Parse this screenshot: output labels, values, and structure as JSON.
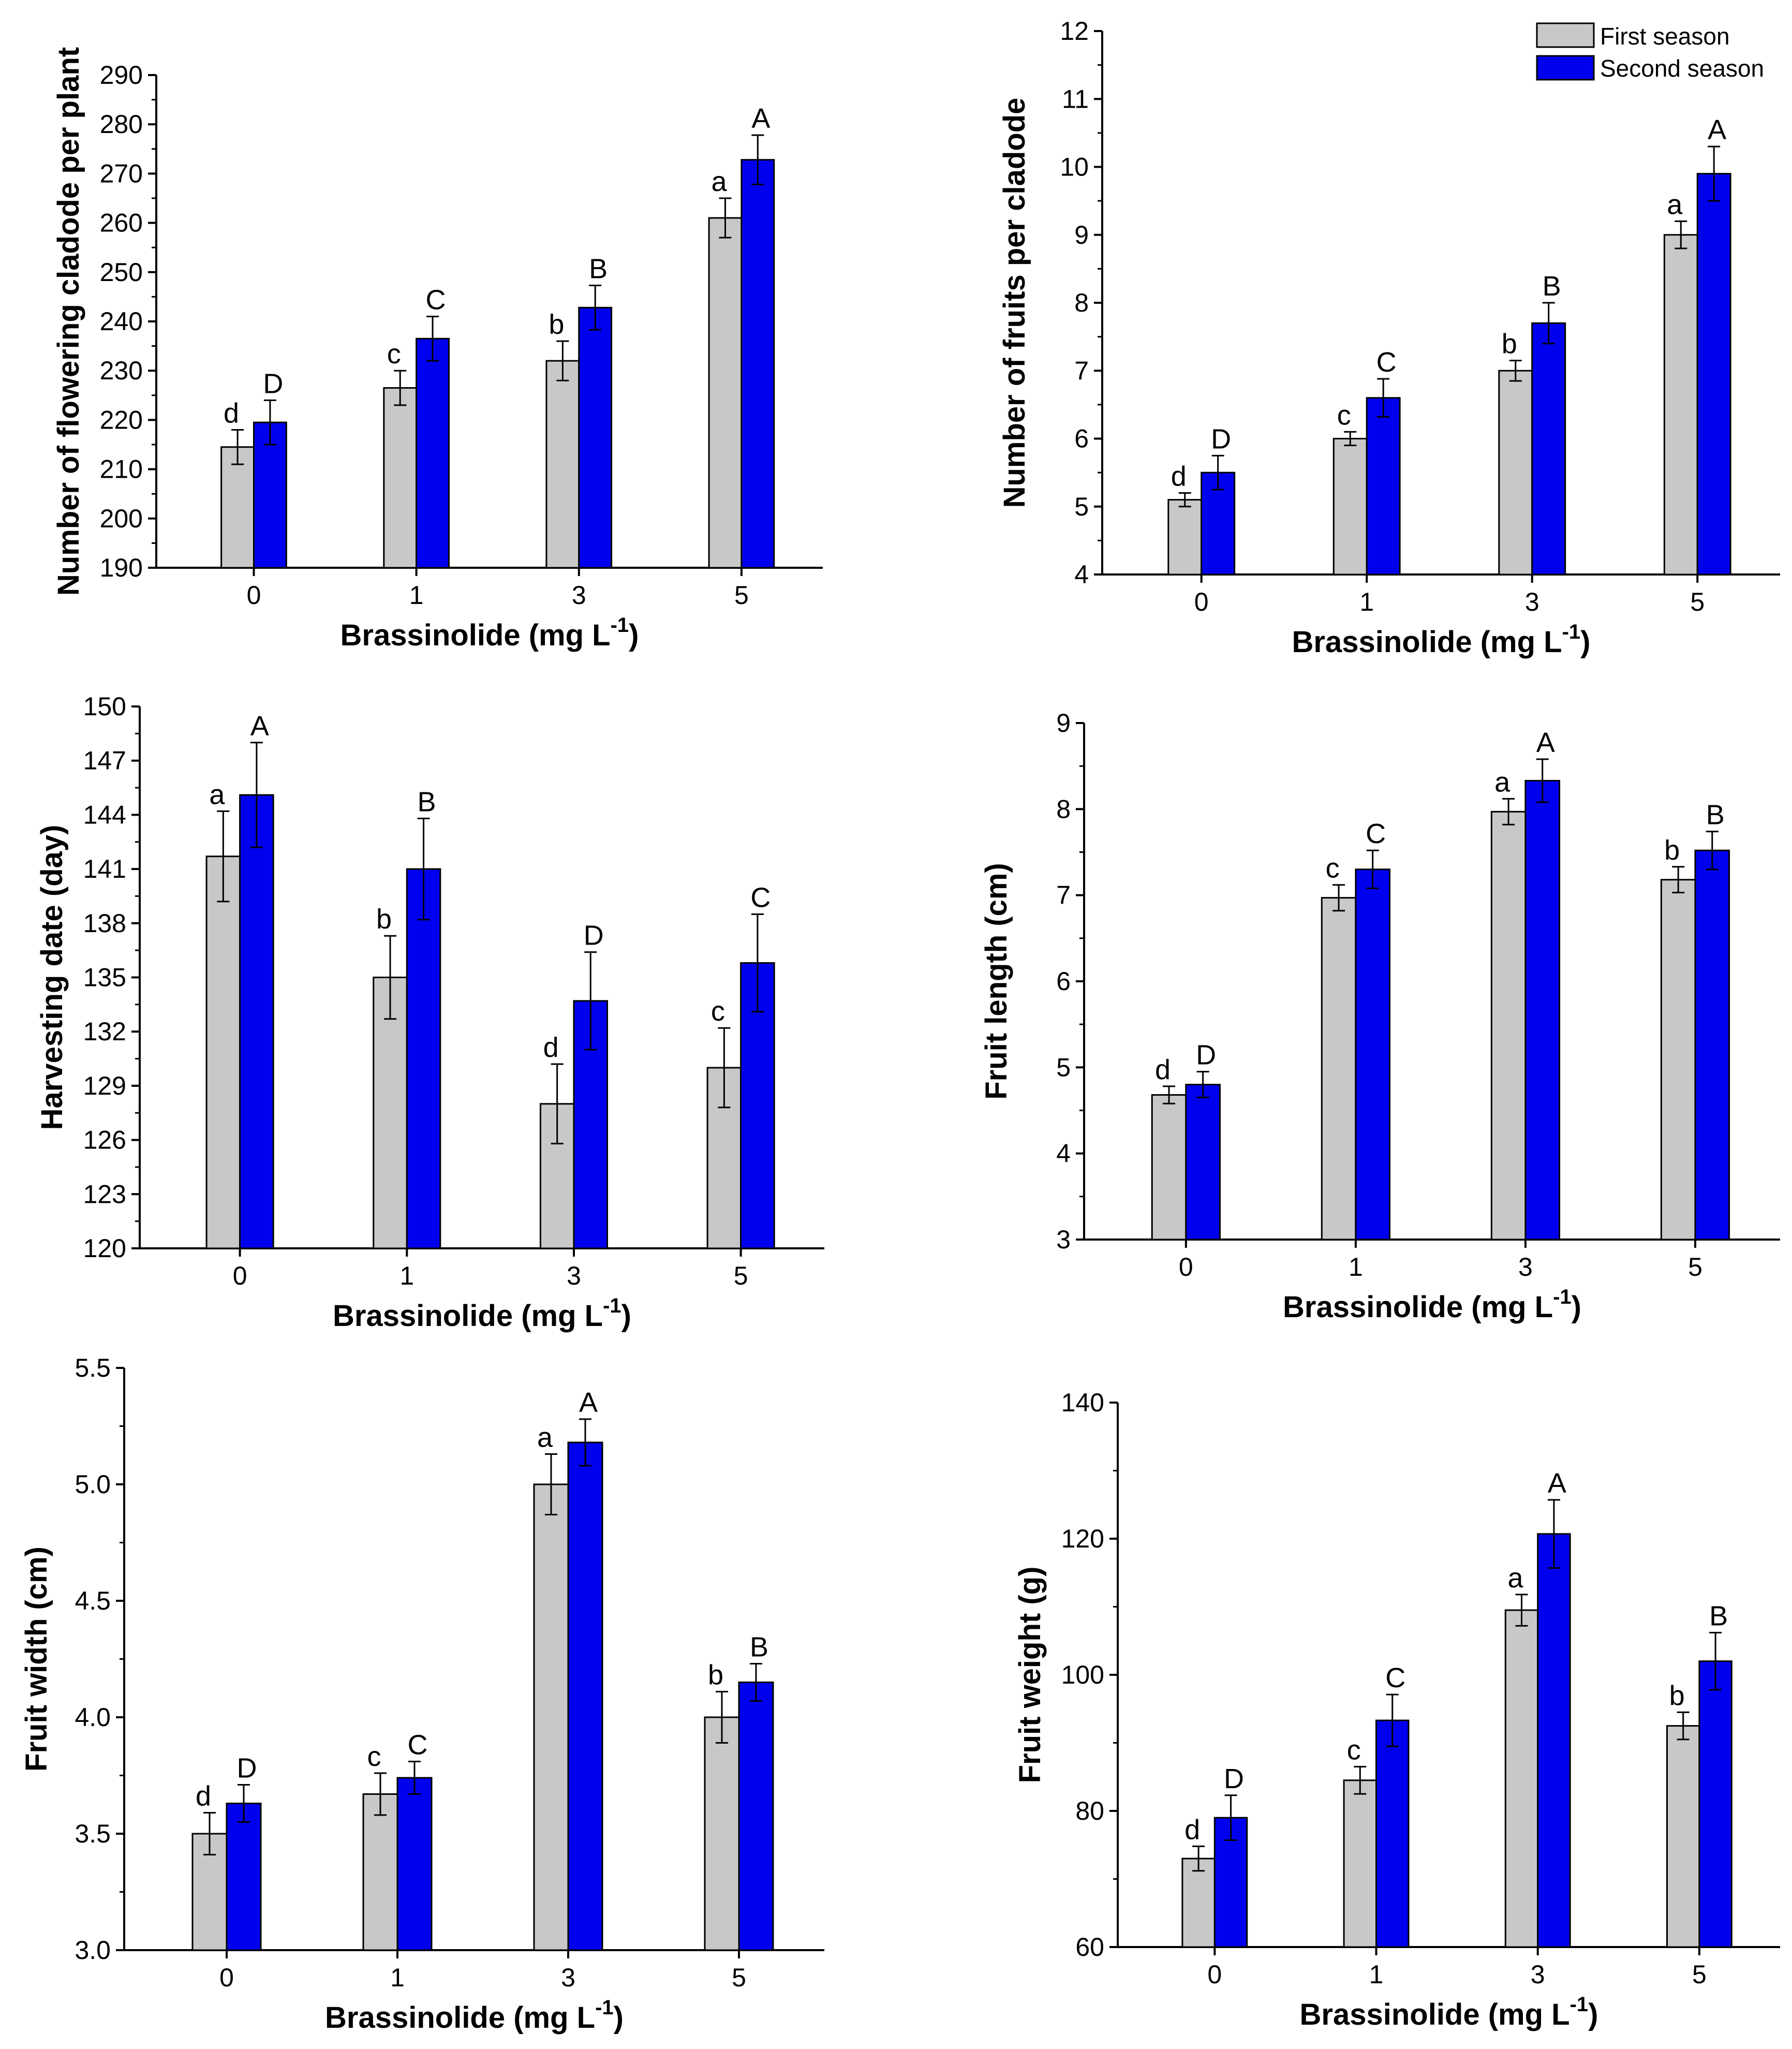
{
  "legend": {
    "first": "First season",
    "second": "Second season"
  },
  "colors": {
    "first": "#c8c8c8",
    "second": "#0000ee",
    "stroke": "#000000"
  },
  "chart_data": [
    {
      "id": "flowering",
      "type": "bar",
      "title": "",
      "ylabel": "Number of flowering cladode per plant",
      "xlabel": "Brassinolide (mg L",
      "xlabel_unit_exp": "-1",
      "xlabel_close": ")",
      "categories": [
        "0",
        "1",
        "3",
        "5"
      ],
      "ylim": [
        190,
        290
      ],
      "yticks": [
        "190",
        "200",
        "210",
        "220",
        "230",
        "240",
        "250",
        "260",
        "270",
        "280",
        "290"
      ],
      "series": [
        {
          "name": "First season",
          "values": [
            214.5,
            226.5,
            232,
            261
          ],
          "errors": [
            3.5,
            3.5,
            4,
            4
          ],
          "letters": [
            "d",
            "c",
            "b",
            "a"
          ]
        },
        {
          "name": "Second season",
          "values": [
            219.5,
            236.5,
            242.8,
            272.8
          ],
          "errors": [
            4.5,
            4.5,
            4.5,
            5
          ],
          "letters": [
            "D",
            "C",
            "B",
            "A"
          ]
        }
      ]
    },
    {
      "id": "fruits",
      "type": "bar",
      "title": "",
      "ylabel": "Number of fruits per cladode",
      "xlabel": "Brassinolide (mg L",
      "xlabel_unit_exp": "-1",
      "xlabel_close": ")",
      "categories": [
        "0",
        "1",
        "3",
        "5"
      ],
      "ylim": [
        4,
        12
      ],
      "yticks": [
        "4",
        "5",
        "6",
        "7",
        "8",
        "9",
        "10",
        "11",
        "12"
      ],
      "series": [
        {
          "name": "First season",
          "values": [
            5.1,
            6.0,
            7.0,
            9.0
          ],
          "errors": [
            0.1,
            0.1,
            0.15,
            0.2
          ],
          "letters": [
            "d",
            "c",
            "b",
            "a"
          ]
        },
        {
          "name": "Second season",
          "values": [
            5.5,
            6.6,
            7.7,
            9.9
          ],
          "errors": [
            0.25,
            0.28,
            0.3,
            0.4
          ],
          "letters": [
            "D",
            "C",
            "B",
            "A"
          ]
        }
      ]
    },
    {
      "id": "harvest",
      "type": "bar",
      "title": "",
      "ylabel": "Harvesting date (day)",
      "xlabel": "Brassinolide (mg L",
      "xlabel_unit_exp": "-1",
      "xlabel_close": ")",
      "categories": [
        "0",
        "1",
        "3",
        "5"
      ],
      "ylim": [
        120,
        150
      ],
      "yticks": [
        "120",
        "123",
        "126",
        "129",
        "132",
        "135",
        "138",
        "141",
        "144",
        "147",
        "150"
      ],
      "series": [
        {
          "name": "First season",
          "values": [
            141.7,
            135,
            128,
            130
          ],
          "errors": [
            2.5,
            2.3,
            2.2,
            2.2
          ],
          "letters": [
            "a",
            "b",
            "d",
            "c"
          ]
        },
        {
          "name": "Second season",
          "values": [
            145.1,
            141,
            133.7,
            135.8
          ],
          "errors": [
            2.9,
            2.8,
            2.7,
            2.7
          ],
          "letters": [
            "A",
            "B",
            "D",
            "C"
          ]
        }
      ]
    },
    {
      "id": "length",
      "type": "bar",
      "title": "",
      "ylabel": "Fruit length (cm)",
      "xlabel": "Brassinolide (mg L",
      "xlabel_unit_exp": "-1",
      "xlabel_close": ")",
      "categories": [
        "0",
        "1",
        "3",
        "5"
      ],
      "ylim": [
        3,
        9
      ],
      "yticks": [
        "3",
        "4",
        "5",
        "6",
        "7",
        "8",
        "9"
      ],
      "series": [
        {
          "name": "First season",
          "values": [
            4.68,
            6.97,
            7.97,
            7.18
          ],
          "errors": [
            0.1,
            0.15,
            0.15,
            0.15
          ],
          "letters": [
            "d",
            "c",
            "a",
            "b"
          ]
        },
        {
          "name": "Second season",
          "values": [
            4.8,
            7.3,
            8.33,
            7.52
          ],
          "errors": [
            0.15,
            0.22,
            0.25,
            0.22
          ],
          "letters": [
            "D",
            "C",
            "A",
            "B"
          ]
        }
      ]
    },
    {
      "id": "width",
      "type": "bar",
      "title": "",
      "ylabel": "Fruit width (cm)",
      "xlabel": "Brassinolide (mg L",
      "xlabel_unit_exp": "-1",
      "xlabel_close": ")",
      "categories": [
        "0",
        "1",
        "3",
        "5"
      ],
      "ylim": [
        3.0,
        5.5
      ],
      "yticks": [
        "3.0",
        "3.5",
        "4.0",
        "4.5",
        "5.0",
        "5.5"
      ],
      "series": [
        {
          "name": "First season",
          "values": [
            3.5,
            3.67,
            5.0,
            4.0
          ],
          "errors": [
            0.09,
            0.09,
            0.13,
            0.11
          ],
          "letters": [
            "d",
            "c",
            "a",
            "b"
          ]
        },
        {
          "name": "Second season",
          "values": [
            3.63,
            3.74,
            5.18,
            4.15
          ],
          "errors": [
            0.08,
            0.07,
            0.1,
            0.08
          ],
          "letters": [
            "D",
            "C",
            "A",
            "B"
          ]
        }
      ]
    },
    {
      "id": "weight",
      "type": "bar",
      "title": "",
      "ylabel": "Fruit weight  (g)",
      "xlabel": "Brassinolide (mg L",
      "xlabel_unit_exp": "-1",
      "xlabel_close": ")",
      "categories": [
        "0",
        "1",
        "3",
        "5"
      ],
      "ylim": [
        60,
        140
      ],
      "yticks": [
        "60",
        "80",
        "100",
        "120",
        "140"
      ],
      "series": [
        {
          "name": "First season",
          "values": [
            73,
            84.5,
            109.5,
            92.5
          ],
          "errors": [
            1.8,
            2.0,
            2.3,
            2.0
          ],
          "letters": [
            "d",
            "c",
            "a",
            "b"
          ]
        },
        {
          "name": "Second season",
          "values": [
            79,
            93.3,
            120.7,
            102
          ],
          "errors": [
            3.3,
            3.8,
            5.0,
            4.2
          ],
          "letters": [
            "D",
            "C",
            "A",
            "B"
          ]
        }
      ]
    }
  ]
}
